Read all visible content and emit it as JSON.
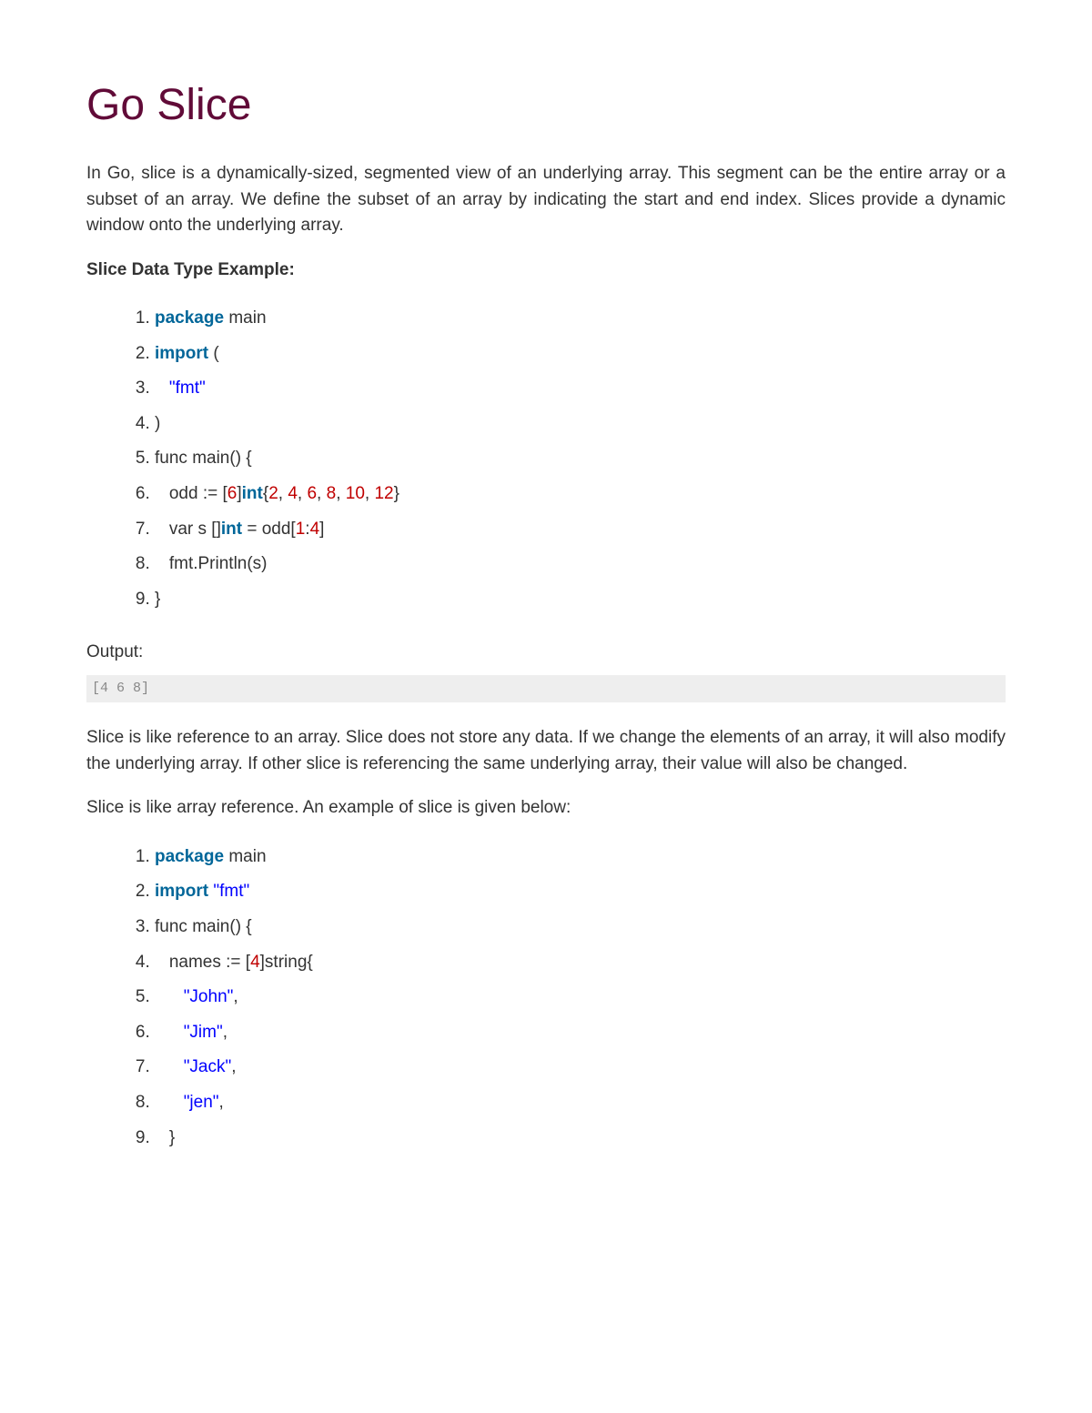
{
  "title": "Go Slice",
  "intro": "In Go, slice is a dynamically-sized, segmented view of an underlying array. This segment can be the entire array or a subset of an array. We define the subset of an array by indicating the start and end index. Slices provide a dynamic window onto the underlying array.",
  "example1_heading": "Slice Data Type Example:",
  "code1": {
    "l1_kw": "package",
    "l1_rest": " main",
    "l2_kw": "import",
    "l2_rest": " (",
    "l3_indent": "   ",
    "l3_str": "\"fmt\"",
    "l4": ")",
    "l5": "func main() {",
    "l6_pre": "   odd := [",
    "l6_n1": "6",
    "l6_mid1": "]",
    "l6_type": "int",
    "l6_brace": "{",
    "l6_v1": "2",
    "l6_c1": ", ",
    "l6_v2": "4",
    "l6_c2": ", ",
    "l6_v3": "6",
    "l6_c3": ", ",
    "l6_v4": "8",
    "l6_c4": ", ",
    "l6_v5": "10",
    "l6_c5": ", ",
    "l6_v6": "12",
    "l6_end": "}",
    "l7_pre": "   var s []",
    "l7_type": "int",
    "l7_mid": " = odd[",
    "l7_n1": "1",
    "l7_colon": ":",
    "l7_n2": "4",
    "l7_end": "]",
    "l8": "   fmt.Println(s)",
    "l9": "}"
  },
  "output_label": "Output:",
  "output1": "[4 6 8]",
  "para2": "Slice is like reference to an array. Slice does not store any data. If we change the elements of an array, it will also modify the underlying array. If other slice is referencing the same underlying array, their value will also be changed.",
  "para3": "Slice is like array reference. An example of slice is given below:",
  "code2": {
    "l1_kw": "package",
    "l1_rest": " main",
    "l2_kw": "import",
    "l2_sp": " ",
    "l2_str": "\"fmt\"",
    "l3": "func main() {",
    "l4_pre": "   names := [",
    "l4_n": "4",
    "l4_rest": "]string{",
    "l5_indent": "      ",
    "l5_str": "\"John\"",
    "l5_c": ",",
    "l6_indent": "      ",
    "l6_str": "\"Jim\"",
    "l6_c": ",",
    "l7_indent": "      ",
    "l7_str": "\"Jack\"",
    "l7_c": ",",
    "l8_indent": "      ",
    "l8_str": "\"jen\"",
    "l8_c": ",",
    "l9": "   }"
  },
  "colors": {
    "title": "#610b38",
    "keyword": "#006699",
    "string": "#0000ff",
    "number": "#c00000",
    "text": "#333333",
    "output_bg": "#eeeeee",
    "output_text": "#888888"
  },
  "typography": {
    "title_fontsize": 48,
    "body_fontsize": 19,
    "code_fontsize": 19,
    "output_fontsize": 15
  }
}
